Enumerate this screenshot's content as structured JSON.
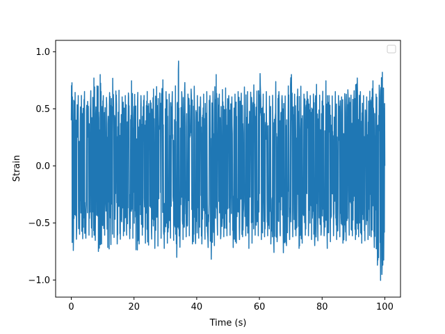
{
  "chart_data": {
    "type": "line",
    "title": "",
    "xlabel": "Time (s)",
    "ylabel": "Strain",
    "xlim": [
      -5,
      105
    ],
    "ylim": [
      -1.15,
      1.1
    ],
    "x_ticks": [
      {
        "value": 0,
        "label": "0"
      },
      {
        "value": 20,
        "label": "20"
      },
      {
        "value": 40,
        "label": "40"
      },
      {
        "value": 60,
        "label": "60"
      },
      {
        "value": 80,
        "label": "80"
      },
      {
        "value": 100,
        "label": "100"
      }
    ],
    "y_ticks": [
      {
        "value": -1.0,
        "label": "−1.0"
      },
      {
        "value": -0.5,
        "label": "−0.5"
      },
      {
        "value": 0.0,
        "label": "0.0"
      },
      {
        "value": 0.5,
        "label": "0.5"
      },
      {
        "value": 1.0,
        "label": "1.0"
      }
    ],
    "grid": false,
    "legend": {
      "placement": "top-right",
      "entries": []
    },
    "series": [
      {
        "color": "#1f77b4",
        "x": [
          0,
          1,
          2,
          3,
          4,
          5,
          6,
          7,
          8,
          9,
          10,
          11,
          12,
          13,
          14,
          15,
          16,
          17,
          18,
          19,
          20,
          21,
          22,
          23,
          24,
          25,
          26,
          27,
          28,
          29,
          30,
          31,
          32,
          33,
          34,
          35,
          36,
          37,
          38,
          39,
          40,
          41,
          42,
          43,
          44,
          45,
          46,
          47,
          48,
          49,
          50,
          51,
          52,
          53,
          54,
          55,
          56,
          57,
          58,
          59,
          60,
          61,
          62,
          63,
          64,
          65,
          66,
          67,
          68,
          69,
          70,
          71,
          72,
          73,
          74,
          75,
          76,
          77,
          78,
          79,
          80,
          81,
          82,
          83,
          84,
          85,
          86,
          87,
          88,
          89,
          90,
          91,
          92,
          93,
          94,
          95,
          96,
          97,
          98,
          99,
          100
        ],
        "max": [
          0.75,
          0.65,
          0.62,
          0.6,
          0.68,
          0.55,
          0.62,
          0.8,
          0.66,
          0.85,
          0.62,
          0.6,
          0.6,
          0.8,
          0.65,
          0.68,
          0.6,
          0.62,
          0.6,
          0.78,
          0.62,
          0.65,
          0.62,
          0.6,
          0.68,
          0.55,
          0.66,
          0.72,
          0.6,
          0.78,
          0.66,
          0.62,
          0.66,
          0.62,
          1.0,
          0.62,
          0.76,
          0.62,
          0.66,
          0.72,
          0.62,
          0.6,
          0.62,
          0.66,
          0.62,
          0.6,
          0.85,
          0.62,
          0.66,
          0.7,
          0.62,
          0.6,
          0.62,
          0.66,
          0.62,
          0.7,
          0.66,
          0.62,
          0.74,
          0.6,
          0.86,
          0.62,
          0.66,
          0.62,
          0.58,
          0.76,
          0.66,
          0.62,
          0.6,
          0.66,
          0.85,
          0.62,
          0.66,
          0.72,
          0.62,
          0.66,
          0.62,
          0.6,
          0.74,
          0.62,
          0.62,
          0.78,
          0.62,
          0.6,
          0.66,
          0.62,
          0.6,
          0.62,
          0.68,
          0.62,
          0.62,
          0.8,
          0.66,
          0.62,
          0.6,
          0.62,
          0.78,
          0.62,
          0.66,
          0.88,
          0.6
        ],
        "min": [
          -0.78,
          -0.72,
          -0.6,
          -0.6,
          -0.66,
          -0.62,
          -0.6,
          -0.64,
          -0.66,
          -0.8,
          -0.62,
          -0.6,
          -0.78,
          -0.64,
          -0.62,
          -0.72,
          -0.6,
          -0.62,
          -0.6,
          -0.66,
          -0.62,
          -0.8,
          -0.62,
          -0.6,
          -0.72,
          -0.68,
          -0.62,
          -0.78,
          -0.66,
          -0.62,
          -0.78,
          -0.62,
          -0.64,
          -0.66,
          -0.88,
          -0.62,
          -0.66,
          -0.6,
          -0.62,
          -0.72,
          -0.66,
          -0.62,
          -0.72,
          -0.6,
          -0.78,
          -0.84,
          -0.62,
          -0.6,
          -0.66,
          -0.6,
          -0.62,
          -0.6,
          -0.78,
          -0.62,
          -0.66,
          -0.6,
          -0.62,
          -0.78,
          -0.62,
          -0.6,
          -0.62,
          -0.66,
          -0.6,
          -0.62,
          -0.72,
          -0.78,
          -0.6,
          -0.62,
          -0.84,
          -0.62,
          -0.66,
          -0.6,
          -0.62,
          -0.78,
          -0.62,
          -0.6,
          -0.62,
          -0.66,
          -0.72,
          -0.62,
          -0.6,
          -0.62,
          -0.78,
          -0.6,
          -0.62,
          -0.66,
          -0.6,
          -0.72,
          -0.62,
          -0.6,
          -0.62,
          -0.66,
          -0.6,
          -0.72,
          -0.62,
          -0.66,
          -0.6,
          -0.78,
          -0.92,
          -1.05,
          -0.7
        ]
      }
    ]
  }
}
